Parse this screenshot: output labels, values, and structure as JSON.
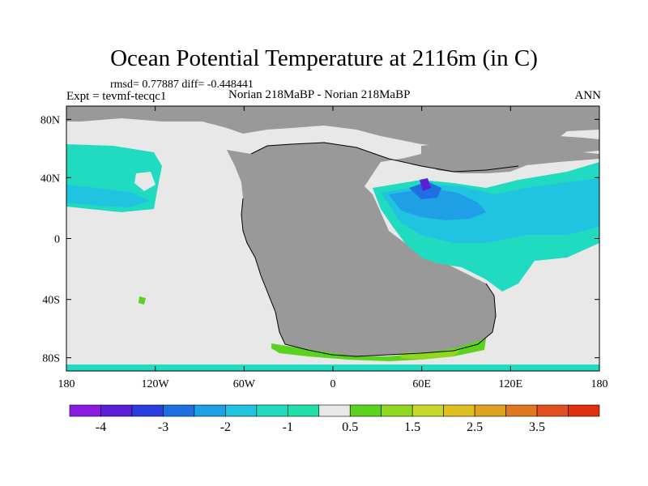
{
  "header": {
    "title": "Ocean Potential Temperature at 2116m (in C)",
    "stats": "rmsd= 0.77887 diff= -0.448441",
    "left_label": "Expt = tevmf-tecqc1",
    "center_label": "Norian 218MaBP - Norian 218MaBP",
    "right_label": "ANN"
  },
  "axes": {
    "x_ticks": [
      "180",
      "120W",
      "60W",
      "0",
      "60E",
      "120E",
      "180"
    ],
    "y_ticks": [
      "80N",
      "40N",
      "0",
      "40S",
      "80S"
    ]
  },
  "colorbar": {
    "labels": [
      "-4",
      "-3",
      "-2",
      "-1",
      "0.5",
      "1.5",
      "2.5",
      "3.5"
    ],
    "colors": [
      "#8a1ae0",
      "#5a1fd6",
      "#2a3ee0",
      "#1f6fe0",
      "#1fa0e6",
      "#20c3e0",
      "#20dbc0",
      "#20e0a8",
      "#e8e8e8",
      "#5ad21f",
      "#90d820",
      "#c8d828",
      "#e0c020",
      "#e0a020",
      "#e07820",
      "#e05020",
      "#e03010"
    ]
  },
  "map_colors": {
    "land": "#999999",
    "neutral": "#e8e8e8",
    "cyan": "#20dbc0",
    "light_blue": "#20c3e0",
    "mid_blue": "#1fa0e6",
    "blue": "#1f6fe0",
    "violet": "#5a1fd6",
    "green": "#5ad21f",
    "yellow_green": "#90d820",
    "coast": "#000000"
  }
}
